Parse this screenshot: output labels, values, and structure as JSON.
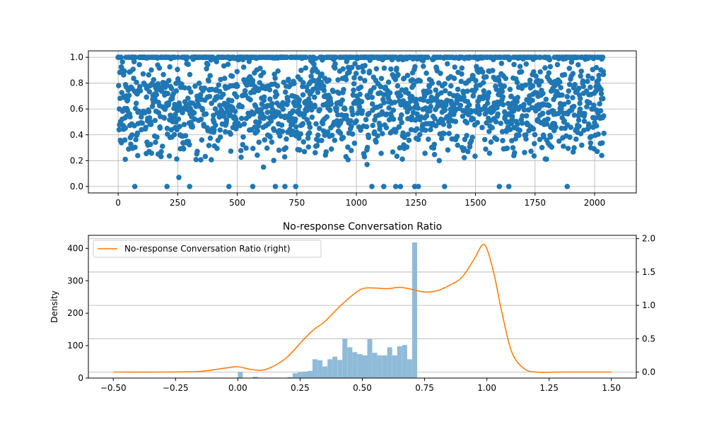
{
  "colors": {
    "scatter": "#1f77b4",
    "hist": "#8fbbd9",
    "kde": "#ff7f0e",
    "grid": "#b0b0b0"
  },
  "chart_data": [
    {
      "type": "scatter",
      "title": "",
      "xlabel": "",
      "ylabel": "",
      "xlim": [
        -125,
        2175
      ],
      "ylim": [
        -0.05,
        1.05
      ],
      "xticks": [
        0,
        250,
        500,
        750,
        1000,
        1250,
        1500,
        1750,
        2000
      ],
      "xtick_labels": [
        "0",
        "250",
        "500",
        "750",
        "1000",
        "1250",
        "1500",
        "1750",
        "2000"
      ],
      "yticks": [
        0.0,
        0.2,
        0.4,
        0.6,
        0.8,
        1.0
      ],
      "ytick_labels": [
        "0.0",
        "0.2",
        "0.4",
        "0.6",
        "0.8",
        "1.0"
      ],
      "grid": true,
      "n_points": 2040,
      "outliers": [
        {
          "x": 70,
          "y": 0.0
        },
        {
          "x": 205,
          "y": 0.0
        },
        {
          "x": 300,
          "y": 0.0
        },
        {
          "x": 465,
          "y": 0.0
        },
        {
          "x": 565,
          "y": 0.0
        },
        {
          "x": 660,
          "y": 0.0
        },
        {
          "x": 700,
          "y": 0.0
        },
        {
          "x": 745,
          "y": 0.0
        },
        {
          "x": 1065,
          "y": 0.0
        },
        {
          "x": 1115,
          "y": 0.0
        },
        {
          "x": 1165,
          "y": 0.0
        },
        {
          "x": 1185,
          "y": 0.0
        },
        {
          "x": 1245,
          "y": 0.0
        },
        {
          "x": 1260,
          "y": 0.0
        },
        {
          "x": 1370,
          "y": 0.0
        },
        {
          "x": 1600,
          "y": 0.0
        },
        {
          "x": 1640,
          "y": 0.0
        },
        {
          "x": 1885,
          "y": 0.0
        },
        {
          "x": 255,
          "y": 0.07
        },
        {
          "x": 610,
          "y": 0.15
        },
        {
          "x": 1045,
          "y": 0.17
        },
        {
          "x": 2030,
          "y": 0.24
        },
        {
          "x": 30,
          "y": 0.21
        }
      ]
    },
    {
      "type": "bar",
      "title": "No-response Conversation Ratio",
      "xlabel": "",
      "ylabel": "Density",
      "xlim": [
        -0.6,
        1.6
      ],
      "ylim": [
        0,
        440
      ],
      "ylim_right": [
        -0.09,
        2.05
      ],
      "xticks": [
        -0.5,
        -0.25,
        0.0,
        0.25,
        0.5,
        0.75,
        1.0,
        1.25,
        1.5
      ],
      "xtick_labels": [
        "−0.50",
        "−0.25",
        "0.00",
        "0.25",
        "0.50",
        "0.75",
        "1.00",
        "1.25",
        "1.50"
      ],
      "yticks": [
        0,
        100,
        200,
        300,
        400
      ],
      "ytick_labels": [
        "0",
        "100",
        "200",
        "300",
        "400"
      ],
      "yticks_right": [
        0.0,
        0.5,
        1.0,
        1.5,
        2.0
      ],
      "ytick_labels_right": [
        "0.0",
        "0.5",
        "1.0",
        "1.5",
        "2.0"
      ],
      "grid_right": true,
      "legend": {
        "position": "upper-left",
        "label": "No-response Conversation Ratio (right)"
      },
      "hist_bins": {
        "start": 0.0,
        "width": 0.02,
        "counts": [
          18,
          0,
          0,
          4,
          0,
          0,
          0,
          0,
          0,
          0,
          3,
          15,
          18,
          20,
          22,
          58,
          55,
          36,
          58,
          66,
          56,
          122,
          95,
          80,
          74,
          70,
          120,
          78,
          70,
          70,
          95,
          70,
          98,
          102,
          58,
          418
        ]
      },
      "kde": {
        "x": [
          -0.5,
          -0.3,
          -0.15,
          -0.05,
          0.0,
          0.05,
          0.1,
          0.15,
          0.2,
          0.25,
          0.3,
          0.35,
          0.4,
          0.45,
          0.5,
          0.55,
          0.6,
          0.65,
          0.7,
          0.75,
          0.8,
          0.85,
          0.9,
          0.95,
          0.98,
          1.0,
          1.03,
          1.06,
          1.1,
          1.15,
          1.2,
          1.3,
          1.5
        ],
        "y": [
          0.0,
          0.0,
          0.01,
          0.06,
          0.08,
          0.04,
          0.03,
          0.1,
          0.23,
          0.43,
          0.62,
          0.76,
          0.95,
          1.12,
          1.25,
          1.26,
          1.25,
          1.27,
          1.24,
          1.2,
          1.22,
          1.3,
          1.42,
          1.7,
          1.9,
          1.85,
          1.45,
          0.9,
          0.3,
          0.05,
          0.0,
          0.0,
          0.0
        ]
      }
    }
  ]
}
